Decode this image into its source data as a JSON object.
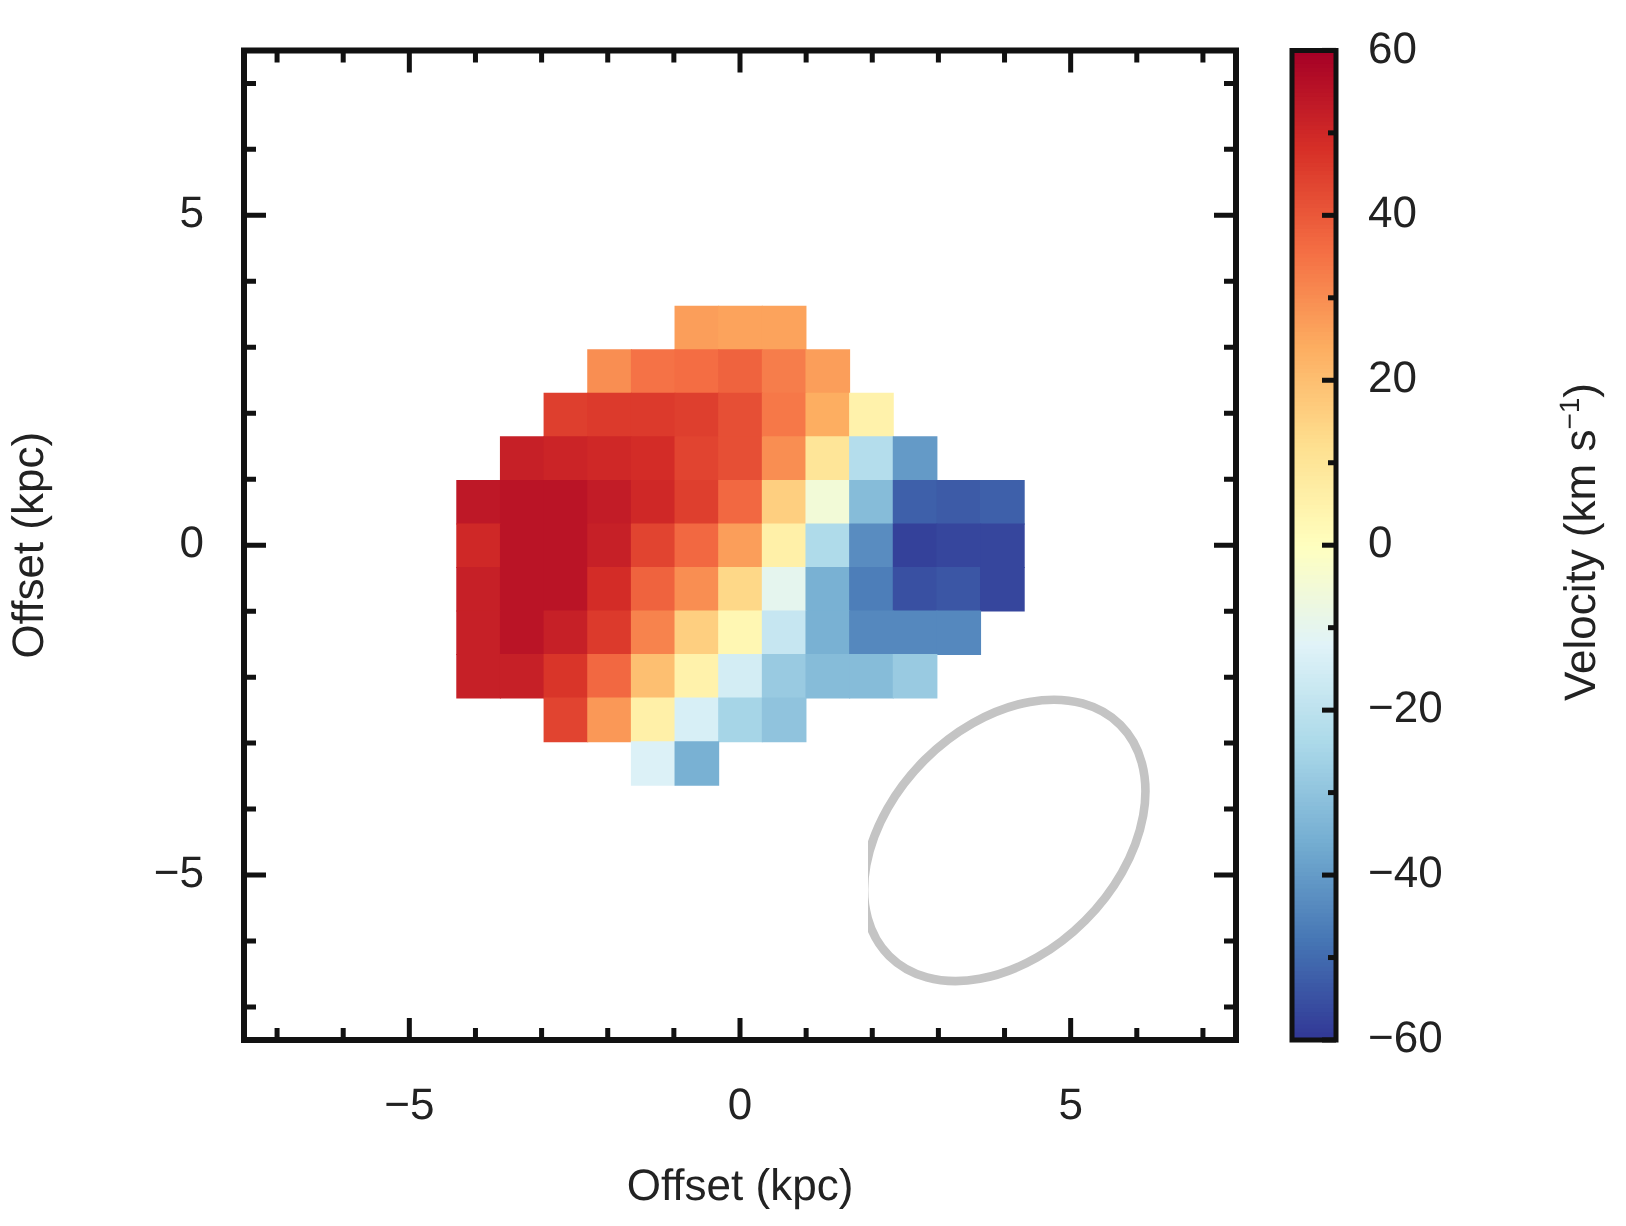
{
  "chart_data": {
    "type": "heatmap",
    "xlabel": "Offset (kpc)",
    "ylabel": "Offset (kpc)",
    "clabel": "Velocity (km s$^{−1}$)",
    "x": [
      -3.96,
      -3.3,
      -2.64,
      -1.98,
      -1.32,
      -0.66,
      0,
      0.66,
      1.32,
      1.98,
      2.64,
      3.3,
      3.96
    ],
    "y": [
      3.3,
      2.64,
      1.98,
      1.32,
      0.66,
      0,
      -0.66,
      -1.32,
      -1.98,
      -2.64,
      -3.3
    ],
    "cells": [
      [
        null,
        null,
        null,
        null,
        null,
        27,
        26,
        26,
        null,
        null,
        null,
        null,
        null
      ],
      [
        null,
        null,
        null,
        30,
        35,
        36,
        38,
        33,
        27,
        null,
        null,
        null,
        null
      ],
      [
        null,
        null,
        45,
        46,
        46,
        45,
        42,
        34,
        24,
        5,
        null,
        null,
        null
      ],
      [
        null,
        52,
        51,
        50,
        49,
        44,
        42,
        30,
        10,
        -22,
        -40,
        null,
        null
      ],
      [
        54,
        55,
        55,
        53,
        50,
        45,
        37,
        16,
        -5,
        -32,
        -52,
        -53,
        -52
      ],
      [
        50,
        55,
        55,
        52,
        44,
        37,
        27,
        6,
        -23,
        -43,
        -58,
        -57,
        -57
      ],
      [
        52,
        55,
        55,
        49,
        38,
        30,
        14,
        -10,
        -35,
        -46,
        -55,
        -54,
        -57
      ],
      [
        52,
        55,
        52,
        46,
        32,
        16,
        3,
        -18,
        -35,
        -44,
        -44,
        -44,
        null
      ],
      [
        52,
        52,
        47,
        37,
        20,
        5,
        -15,
        -28,
        -32,
        -32,
        -28,
        null,
        null
      ],
      [
        null,
        null,
        44,
        28,
        6,
        -14,
        -25,
        -30,
        null,
        null,
        null,
        null,
        null
      ],
      [
        null,
        null,
        null,
        null,
        -13,
        -35,
        null,
        null,
        null,
        null,
        null,
        null,
        null
      ]
    ],
    "xlim": [
      -7.5,
      7.5
    ],
    "xticks": [
      {
        "value": -7,
        "label": null
      },
      {
        "value": -6,
        "label": null
      },
      -5,
      {
        "value": -4,
        "label": null
      },
      {
        "value": -3,
        "label": null
      },
      {
        "value": -2,
        "label": null
      },
      {
        "value": -1,
        "label": null
      },
      0,
      {
        "value": 1,
        "label": null
      },
      {
        "value": 2,
        "label": null
      },
      {
        "value": 3,
        "label": null
      },
      {
        "value": 4,
        "label": null
      },
      5,
      {
        "value": 6,
        "label": null
      },
      {
        "value": 7,
        "label": null
      }
    ],
    "ylim": [
      -7.5,
      7.5
    ],
    "yticks": [
      {
        "value": -7,
        "label": null
      },
      {
        "value": -6,
        "label": null
      },
      -5,
      {
        "value": -4,
        "label": null
      },
      {
        "value": -3,
        "label": null
      },
      {
        "value": -2,
        "label": null
      },
      {
        "value": -1,
        "label": null
      },
      0,
      {
        "value": 1,
        "label": null
      },
      {
        "value": 2,
        "label": null
      },
      {
        "value": 3,
        "label": null
      },
      {
        "value": 4,
        "label": null
      },
      5,
      {
        "value": 6,
        "label": null
      },
      {
        "value": 7,
        "label": null
      }
    ],
    "clim": [
      -60,
      60
    ],
    "cticks": [
      -60,
      {
        "value": -50,
        "label": null
      },
      -40,
      {
        "value": -30,
        "label": null
      },
      -20,
      {
        "value": -10,
        "label": null
      },
      0,
      {
        "value": 10,
        "label": null
      },
      20,
      {
        "value": 30,
        "label": null
      },
      40,
      {
        "value": 50,
        "label": null
      },
      60
    ]
  }
}
